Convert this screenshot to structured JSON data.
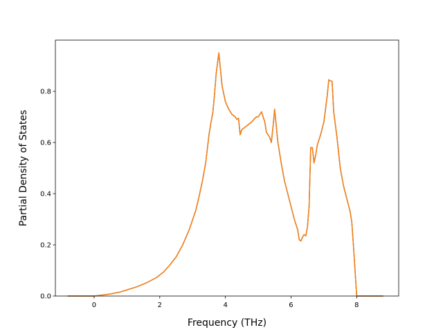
{
  "chart_data": {
    "type": "line",
    "title": "",
    "xlabel": "Frequency (THz)",
    "ylabel": "Partial Density of States",
    "xlim": [
      -1.18,
      9.28
    ],
    "ylim": [
      0.0,
      1.0
    ],
    "xticks": [
      0,
      2,
      4,
      6,
      8
    ],
    "xtick_labels": [
      "0",
      "2",
      "4",
      "6",
      "8"
    ],
    "yticks": [
      0.0,
      0.2,
      0.4,
      0.6,
      0.8
    ],
    "ytick_labels": [
      "0.0",
      "0.2",
      "0.4",
      "0.6",
      "0.8"
    ],
    "grid": false,
    "legend": "none",
    "series": [
      {
        "color": "#1f77b4",
        "x": [
          -0.8,
          0.0,
          0.2,
          0.5,
          0.8,
          1.0,
          1.3,
          1.6,
          1.9,
          2.1,
          2.3,
          2.5,
          2.7,
          2.9,
          3.1,
          3.2,
          3.3,
          3.4,
          3.5,
          3.55,
          3.62,
          3.67,
          3.72,
          3.8,
          3.9,
          4.0,
          4.1,
          4.2,
          4.3,
          4.35,
          4.4,
          4.45,
          4.5,
          4.6,
          4.7,
          4.8,
          4.9,
          4.95,
          5.0,
          5.1,
          5.2,
          5.25,
          5.3,
          5.35,
          5.4,
          5.45,
          5.5,
          5.6,
          5.7,
          5.8,
          5.9,
          6.0,
          6.1,
          6.2,
          6.25,
          6.3,
          6.35,
          6.4,
          6.45,
          6.5,
          6.55,
          6.6,
          6.65,
          6.7,
          6.75,
          6.8,
          6.9,
          7.0,
          7.05,
          7.1,
          7.15,
          7.2,
          7.25,
          7.3,
          7.4,
          7.5,
          7.6,
          7.7,
          7.8,
          7.85,
          7.9,
          7.95,
          8.0,
          8.05,
          8.3,
          8.8
        ],
        "values": [
          0.0,
          0.0,
          0.003,
          0.008,
          0.016,
          0.024,
          0.036,
          0.052,
          0.072,
          0.092,
          0.12,
          0.153,
          0.2,
          0.26,
          0.335,
          0.39,
          0.45,
          0.52,
          0.63,
          0.67,
          0.72,
          0.79,
          0.87,
          0.95,
          0.82,
          0.76,
          0.73,
          0.71,
          0.7,
          0.69,
          0.695,
          0.63,
          0.65,
          0.66,
          0.67,
          0.68,
          0.695,
          0.7,
          0.7,
          0.72,
          0.68,
          0.64,
          0.63,
          0.62,
          0.6,
          0.66,
          0.73,
          0.6,
          0.52,
          0.45,
          0.4,
          0.35,
          0.3,
          0.26,
          0.22,
          0.215,
          0.23,
          0.24,
          0.235,
          0.27,
          0.35,
          0.58,
          0.58,
          0.52,
          0.55,
          0.59,
          0.63,
          0.68,
          0.73,
          0.78,
          0.845,
          0.84,
          0.84,
          0.72,
          0.62,
          0.5,
          0.43,
          0.38,
          0.33,
          0.29,
          0.2,
          0.1,
          0.0,
          0.0,
          0.0,
          0.0
        ]
      },
      {
        "color": "#ff7f0e",
        "x": [
          -0.8,
          0.0,
          0.2,
          0.5,
          0.8,
          1.0,
          1.3,
          1.6,
          1.9,
          2.1,
          2.3,
          2.5,
          2.7,
          2.9,
          3.1,
          3.2,
          3.3,
          3.4,
          3.5,
          3.55,
          3.62,
          3.67,
          3.72,
          3.8,
          3.9,
          4.0,
          4.1,
          4.2,
          4.3,
          4.35,
          4.4,
          4.45,
          4.5,
          4.6,
          4.7,
          4.8,
          4.9,
          4.95,
          5.0,
          5.1,
          5.2,
          5.25,
          5.3,
          5.35,
          5.4,
          5.45,
          5.5,
          5.6,
          5.7,
          5.8,
          5.9,
          6.0,
          6.1,
          6.2,
          6.25,
          6.3,
          6.35,
          6.4,
          6.45,
          6.5,
          6.55,
          6.6,
          6.65,
          6.7,
          6.75,
          6.8,
          6.9,
          7.0,
          7.05,
          7.1,
          7.15,
          7.2,
          7.25,
          7.3,
          7.4,
          7.5,
          7.6,
          7.7,
          7.8,
          7.85,
          7.9,
          7.95,
          8.0,
          8.05,
          8.3,
          8.8
        ],
        "values": [
          0.0,
          0.0,
          0.003,
          0.008,
          0.016,
          0.024,
          0.036,
          0.052,
          0.072,
          0.092,
          0.12,
          0.153,
          0.2,
          0.26,
          0.335,
          0.39,
          0.45,
          0.52,
          0.63,
          0.67,
          0.72,
          0.79,
          0.87,
          0.95,
          0.82,
          0.76,
          0.73,
          0.71,
          0.7,
          0.69,
          0.695,
          0.63,
          0.65,
          0.66,
          0.67,
          0.68,
          0.695,
          0.7,
          0.7,
          0.72,
          0.68,
          0.64,
          0.63,
          0.62,
          0.6,
          0.66,
          0.73,
          0.6,
          0.52,
          0.45,
          0.4,
          0.35,
          0.3,
          0.26,
          0.22,
          0.215,
          0.23,
          0.24,
          0.235,
          0.27,
          0.35,
          0.58,
          0.58,
          0.52,
          0.55,
          0.59,
          0.63,
          0.68,
          0.73,
          0.78,
          0.845,
          0.84,
          0.84,
          0.72,
          0.62,
          0.5,
          0.43,
          0.38,
          0.33,
          0.29,
          0.2,
          0.1,
          0.0,
          0.0,
          0.0,
          0.0
        ]
      }
    ]
  }
}
